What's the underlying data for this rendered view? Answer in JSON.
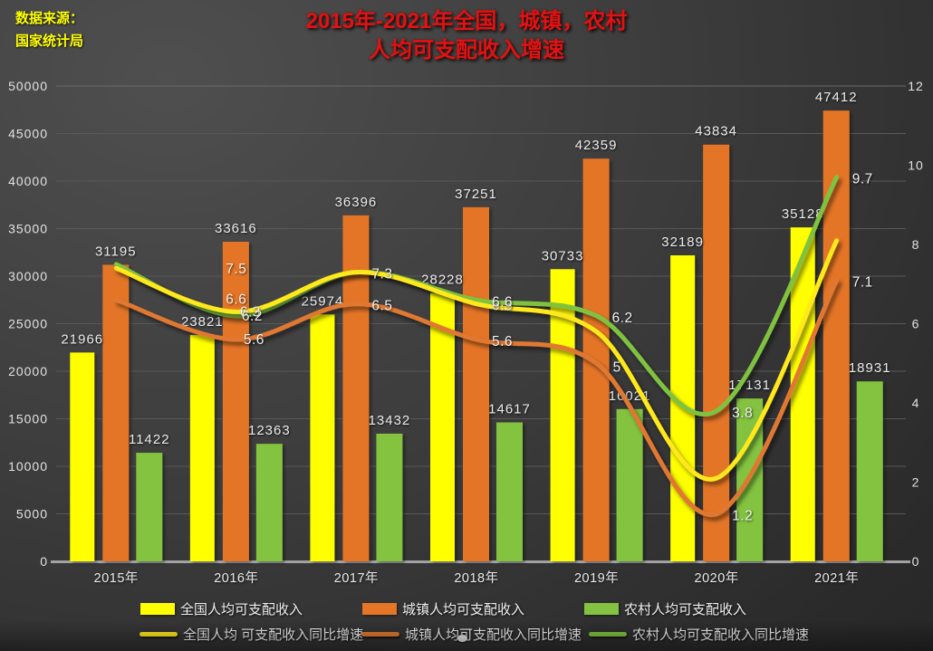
{
  "source": {
    "line1": "数据来源：",
    "line2": "国家统计局"
  },
  "title": {
    "line1": "2015年-2021年全国，城镇，农村",
    "line2": "人均可支配收入增速"
  },
  "colors": {
    "national_bar": "#ffff00",
    "national_line": "#ffe81a",
    "urban_bar": "#e57527",
    "urban_line": "#e07830",
    "rural_bar": "#83c341",
    "rural_line": "#7fc241",
    "title_red": "#df1313",
    "source_yellow": "#ffff00",
    "axis_text": "#e2e2e2",
    "gridline": "#585858",
    "baseline": "#a3a3a3",
    "background_dark": "#2a2a2a"
  },
  "chart_data": {
    "type": "combo (grouped bar + smooth line)",
    "categories": [
      "2015年",
      "2016年",
      "2017年",
      "2018年",
      "2019年",
      "2020年",
      "2021年"
    ],
    "bar_series": [
      {
        "name": "全国人均可支配收入",
        "color_key": "national",
        "values": [
          21966,
          23821,
          25974,
          28228,
          30733,
          32189,
          35128
        ]
      },
      {
        "name": "城镇人均可支配收入",
        "color_key": "urban",
        "values": [
          31195,
          33616,
          36396,
          37251,
          42359,
          43834,
          47412
        ]
      },
      {
        "name": "农村人均可支配收入",
        "color_key": "rural",
        "values": [
          11422,
          12363,
          13432,
          14617,
          16021,
          17131,
          18931
        ]
      }
    ],
    "line_series": [
      {
        "name": "全国人均 可支配收入同比增速",
        "color_key": "national",
        "values": [
          7.4,
          6.3,
          7.3,
          6.5,
          5.8,
          2.1,
          8.1
        ],
        "point_labels": [
          null,
          "6.3",
          "7.3",
          "6.5",
          null,
          null,
          null
        ]
      },
      {
        "name": "城镇人均可支配收入同比增速",
        "color_key": "urban",
        "values": [
          6.6,
          5.6,
          6.5,
          5.6,
          5.0,
          1.2,
          7.1
        ],
        "point_labels": [
          "6.6",
          "5.6",
          "6.5",
          "5.6",
          "5",
          "1.2",
          "7.1"
        ]
      },
      {
        "name": "农村人均可支配收入同比增速",
        "color_key": "rural",
        "values": [
          7.5,
          6.2,
          7.3,
          6.6,
          6.2,
          3.8,
          9.7
        ],
        "point_labels": [
          "7.5",
          "6.2",
          null,
          "6.6",
          "6.2",
          "3.8",
          "9.7"
        ]
      }
    ],
    "left_axis": {
      "min": 0,
      "max": 50000,
      "step": 5000
    },
    "right_axis": {
      "min": 0,
      "max": 12,
      "step": 2
    },
    "grid": true,
    "bar_labels_visible": true,
    "legend_position": "bottom"
  },
  "legend": {
    "row1": [
      {
        "label": "全国人均可支配收入",
        "color_key": "national"
      },
      {
        "label": "城镇人均可支配收入",
        "color_key": "urban"
      },
      {
        "label": "农村人均可支配收入",
        "color_key": "rural"
      }
    ],
    "row2": [
      {
        "label": "全国人均 可支配收入同比增速",
        "color_key": "national"
      },
      {
        "label": "城镇人均可支配收入同比增速",
        "color_key": "urban"
      },
      {
        "label": "农村人均可支配收入同比增速",
        "color_key": "rural"
      }
    ]
  }
}
